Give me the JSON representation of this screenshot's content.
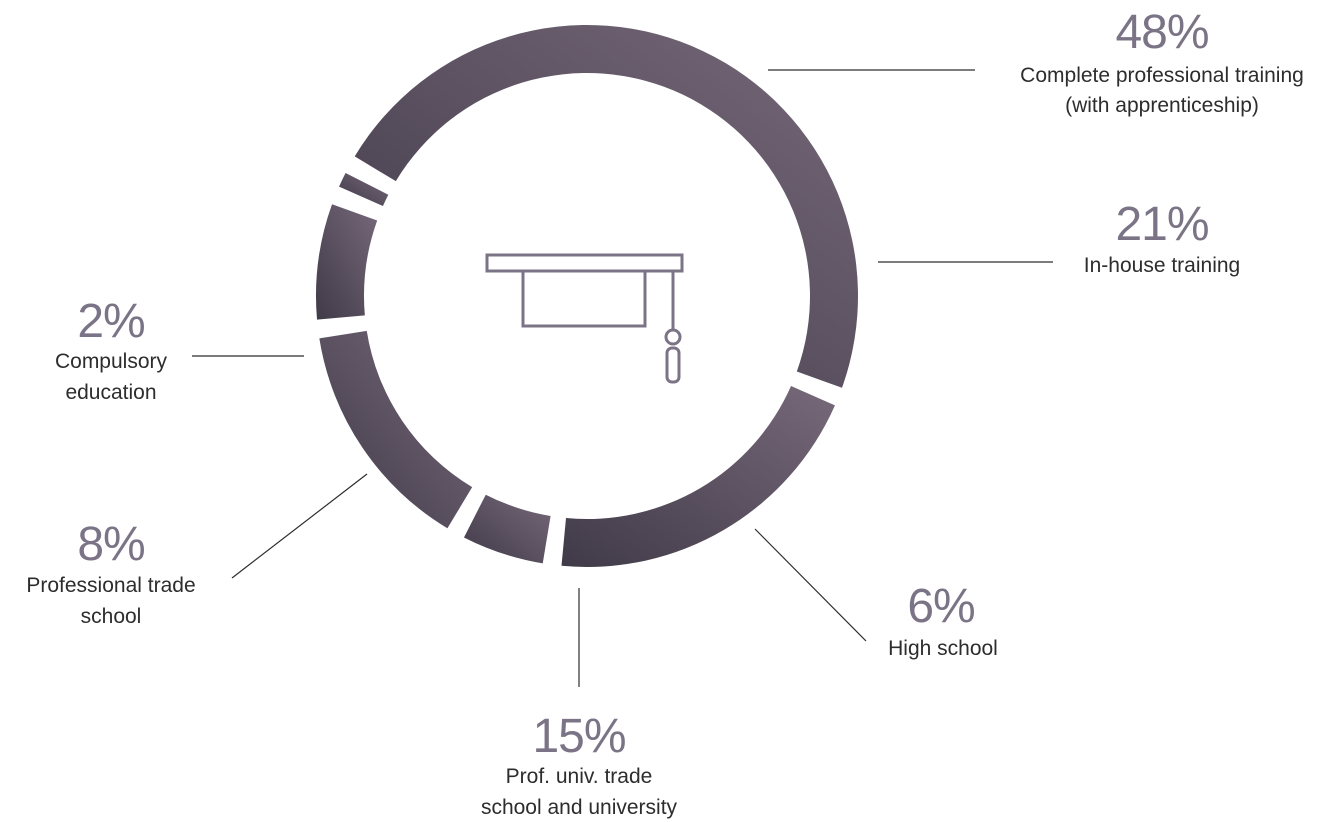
{
  "chart_data": {
    "type": "pie",
    "style": "donut",
    "title": "",
    "center_icon": "graduation-cap-icon",
    "colors": {
      "ring_light": "#77697a",
      "ring_dark": "#403a48",
      "percent_text": "#7b7486",
      "label_text": "#2d2d2d"
    },
    "slices": [
      {
        "key": "complete-professional-training",
        "value": 48,
        "percent_label": "48%",
        "label_lines": [
          "Complete professional training",
          "(with apprenticeship)"
        ]
      },
      {
        "key": "in-house-training",
        "value": 21,
        "percent_label": "21%",
        "label_lines": [
          "In-house training"
        ]
      },
      {
        "key": "high-school",
        "value": 6,
        "percent_label": "6%",
        "label_lines": [
          "High school"
        ]
      },
      {
        "key": "prof-univ-trade-school",
        "value": 15,
        "percent_label": "15%",
        "label_lines": [
          "Prof. univ. trade",
          "school and university"
        ]
      },
      {
        "key": "professional-trade-school",
        "value": 8,
        "percent_label": "8%",
        "label_lines": [
          "Professional trade",
          "school"
        ]
      },
      {
        "key": "compulsory-education",
        "value": 2,
        "percent_label": "2%",
        "label_lines": [
          "Compulsory",
          "education"
        ]
      }
    ]
  }
}
